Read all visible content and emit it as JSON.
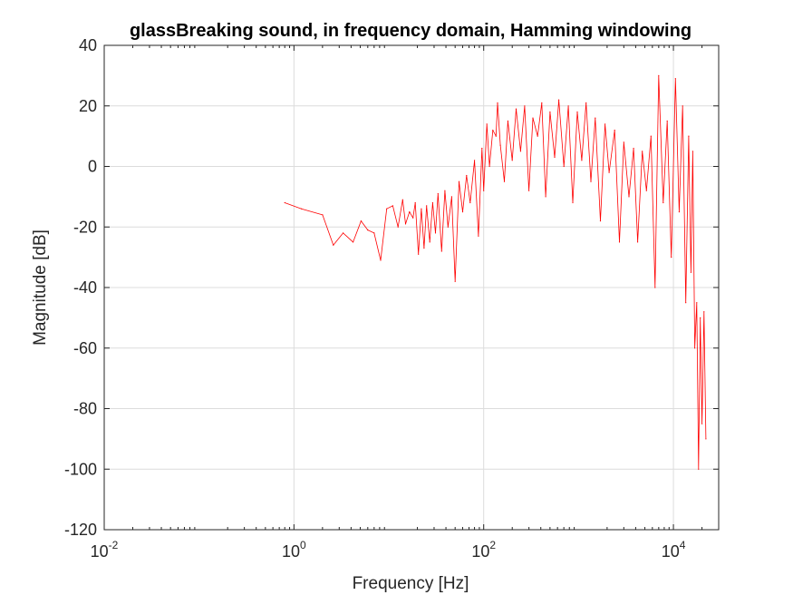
{
  "chart_data": {
    "type": "line",
    "title": "glassBreaking sound, in frequency domain, Hamming windowing",
    "xlabel": "Frequency [Hz]",
    "ylabel": "Magnitude [dB]",
    "x_scale": "log",
    "xlim": [
      0.01,
      30000
    ],
    "ylim": [
      -120,
      40
    ],
    "grid": true,
    "x_ticks": [
      {
        "base": "10",
        "exp": "-2",
        "value": 0.01
      },
      {
        "base": "10",
        "exp": "0",
        "value": 1
      },
      {
        "base": "10",
        "exp": "2",
        "value": 100
      },
      {
        "base": "10",
        "exp": "4",
        "value": 10000
      }
    ],
    "y_ticks": [
      "40",
      "20",
      "0",
      "-20",
      "-40",
      "-60",
      "-80",
      "-100",
      "-120"
    ],
    "y_tick_values": [
      40,
      20,
      0,
      -20,
      -40,
      -60,
      -80,
      -100,
      -120
    ],
    "series": [
      {
        "color": "#ff0000",
        "x": [
          0.8,
          1.2,
          2.0,
          2.6,
          3.3,
          4.2,
          5.1,
          6.0,
          7.0,
          8.2,
          9.5,
          11,
          12.5,
          14,
          15,
          16.5,
          18,
          19,
          20.5,
          22,
          23.5,
          25,
          27,
          29,
          31,
          33,
          36,
          39,
          42,
          46,
          50,
          55,
          60,
          66,
          72,
          80,
          88,
          96,
          100,
          108,
          115,
          125,
          135,
          140,
          150,
          165,
          180,
          200,
          220,
          245,
          270,
          300,
          330,
          370,
          410,
          450,
          500,
          560,
          620,
          700,
          780,
          870,
          970,
          1080,
          1200,
          1350,
          1500,
          1700,
          1900,
          2100,
          2400,
          2700,
          3000,
          3400,
          3800,
          4200,
          4700,
          5200,
          5800,
          6400,
          7000,
          7800,
          8600,
          9500,
          10500,
          11500,
          12500,
          13500,
          14500,
          15300,
          16000,
          16800,
          17600,
          18400,
          19200,
          20000,
          21000,
          22000
        ],
        "y": [
          -12,
          -14,
          -16,
          -26,
          -22,
          -25,
          -18,
          -21,
          -22,
          -31,
          -14,
          -13,
          -20,
          -11,
          -19,
          -15,
          -17,
          -12,
          -29,
          -14,
          -27,
          -13,
          -25,
          -12,
          -22,
          -9,
          -28,
          -8,
          -20,
          -10,
          -38,
          -5,
          -15,
          -3,
          -12,
          2,
          -23,
          6,
          -8,
          14,
          0,
          12,
          10,
          21,
          7,
          -5,
          15,
          2,
          19,
          5,
          20,
          -8,
          16,
          10,
          21,
          -10,
          18,
          3,
          22,
          0,
          20,
          -12,
          18,
          2,
          21,
          -5,
          16,
          -18,
          14,
          -2,
          12,
          -25,
          8,
          -10,
          6,
          -25,
          5,
          -8,
          10,
          -40,
          30,
          -12,
          15,
          -30,
          29,
          -15,
          20,
          -45,
          10,
          -35,
          5,
          -60,
          -45,
          -100,
          -50,
          -85,
          -48,
          -90
        ]
      }
    ]
  }
}
